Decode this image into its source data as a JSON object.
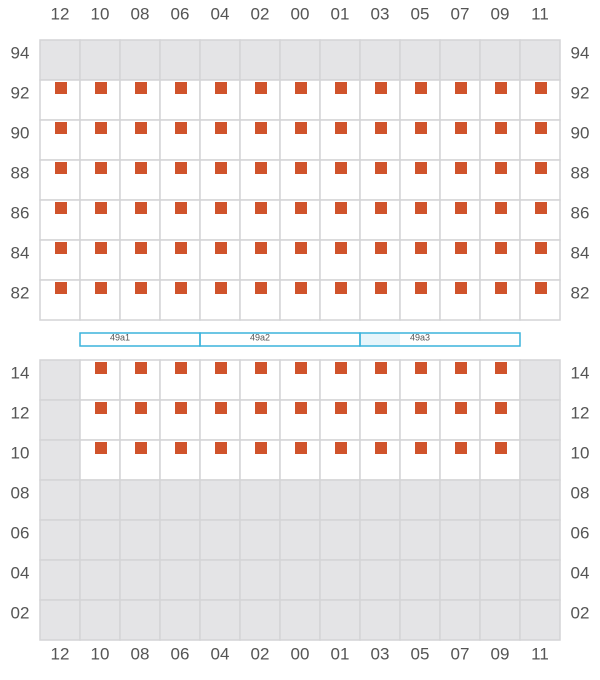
{
  "columns": [
    "12",
    "10",
    "08",
    "06",
    "04",
    "02",
    "00",
    "01",
    "03",
    "05",
    "07",
    "09",
    "11"
  ],
  "upper_rows": [
    "94",
    "92",
    "90",
    "88",
    "86",
    "84",
    "82"
  ],
  "lower_rows": [
    "14",
    "12",
    "10",
    "08",
    "06",
    "04",
    "02"
  ],
  "sections": [
    "49a1",
    "49a2",
    "49a3"
  ]
}
